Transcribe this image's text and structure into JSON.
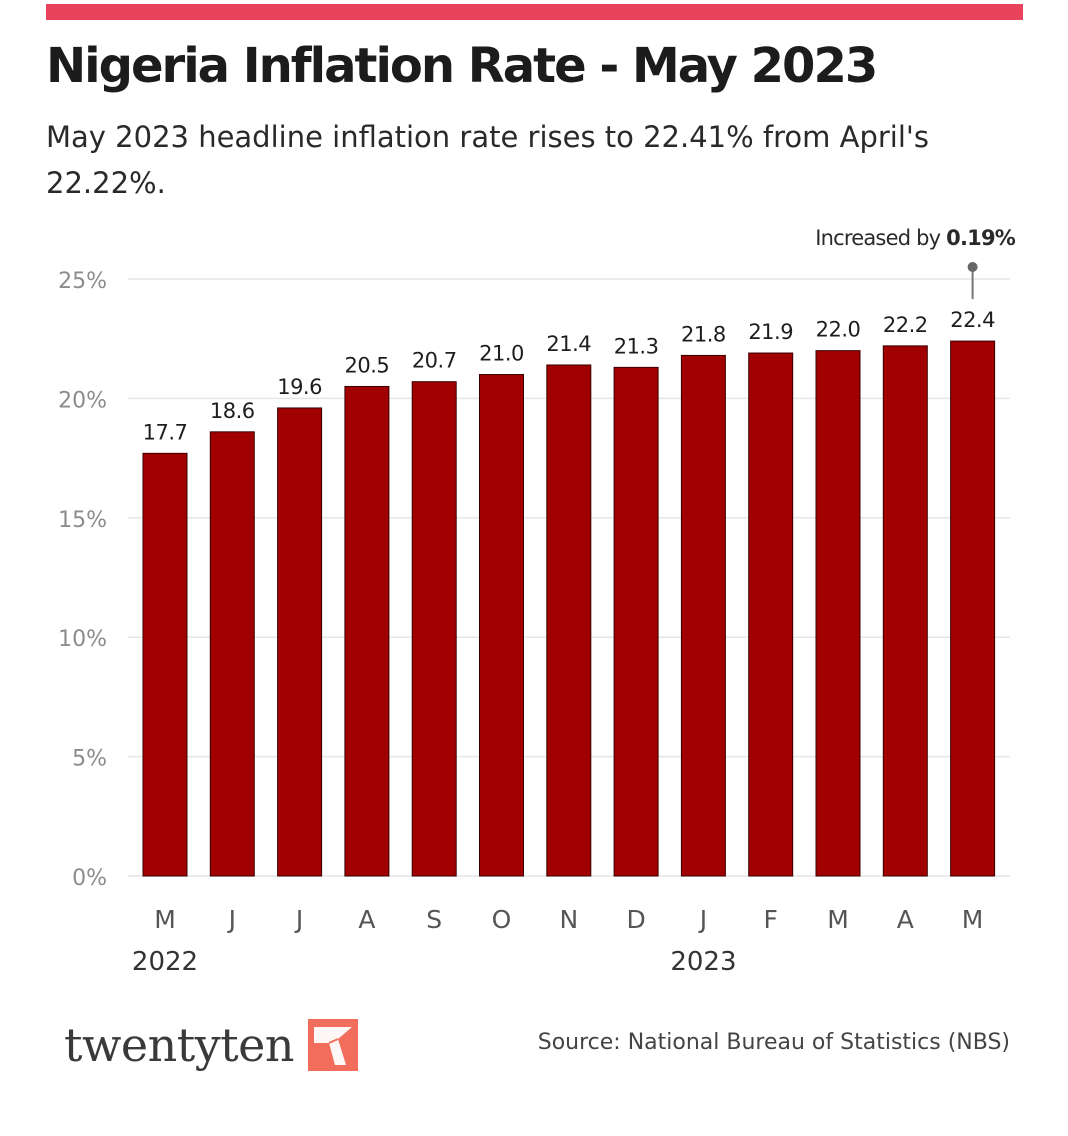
{
  "colors": {
    "accent_bar": "#e8425c",
    "bar_fill": "#a00000",
    "bar_stroke": "#3a0000",
    "grid": "#e6e6e6",
    "tick_text": "#8c8c8c",
    "logo_mark": "#f26d5b"
  },
  "header": {
    "title": "Nigeria Inflation Rate - May 2023",
    "subtitle": "May 2023 headline inflation rate rises to 22.41% from April's 22.22%."
  },
  "chart_data": {
    "type": "bar",
    "categories": [
      "M",
      "J",
      "J",
      "A",
      "S",
      "O",
      "N",
      "D",
      "J",
      "F",
      "M",
      "A",
      "M"
    ],
    "year_labels": [
      {
        "label": "2022",
        "category_index": 0
      },
      {
        "label": "2023",
        "category_index": 8
      }
    ],
    "values": [
      17.7,
      18.6,
      19.6,
      20.5,
      20.7,
      21.0,
      21.4,
      21.3,
      21.8,
      21.9,
      22.0,
      22.2,
      22.4
    ],
    "value_labels": [
      "17.7",
      "18.6",
      "19.6",
      "20.5",
      "20.7",
      "21.0",
      "21.4",
      "21.3",
      "21.8",
      "21.9",
      "22.0",
      "22.2",
      "22.4"
    ],
    "y_ticks": [
      0,
      5,
      10,
      15,
      20,
      25
    ],
    "y_tick_labels": [
      "0%",
      "5%",
      "10%",
      "15%",
      "20%",
      "25%"
    ],
    "ylim": [
      0,
      25
    ],
    "grid": true,
    "annotation": {
      "category_index": 12,
      "text_prefix": "Increased by",
      "text_value": "0.19%"
    }
  },
  "footer": {
    "logo_text": "twentyten",
    "logo_icon": "paper-plane-icon",
    "source_label": "Source:",
    "source_text": "National Bureau of Statistics (NBS)"
  }
}
